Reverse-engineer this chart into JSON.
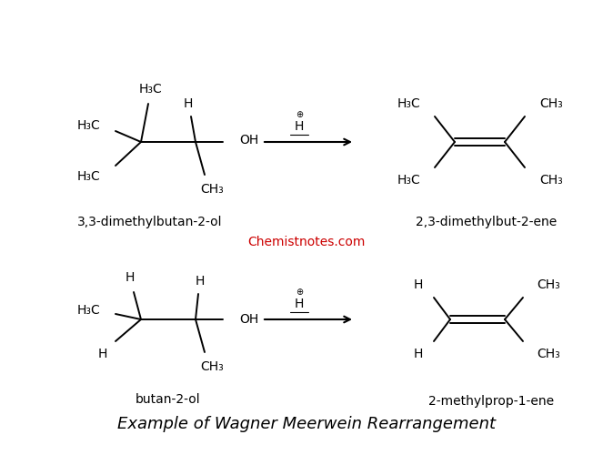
{
  "title": "Example of Wagner Meerwein Rearrangement",
  "title_fontsize": 13,
  "title_style": "italic",
  "watermark": "Chemistnotes.com",
  "watermark_color": "#cc0000",
  "background_color": "#ffffff",
  "reaction1_label_left": "3,3-dimethylbutan-2-ol",
  "reaction1_label_right": "2,3-dimethylbut-2-ene",
  "reaction2_label_left": "butan-2-ol",
  "reaction2_label_right": "2-methylprop-1-ene",
  "fs": 10,
  "fs_small": 8
}
